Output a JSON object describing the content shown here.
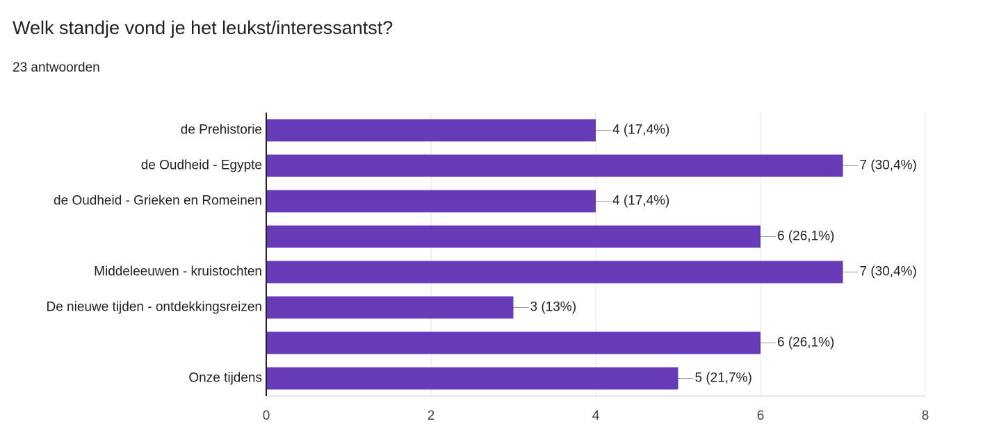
{
  "chart_data": {
    "type": "bar",
    "orientation": "horizontal",
    "title": "Welk standje vond je het leukst/interessantst?",
    "subtitle": "23 antwoorden",
    "categories": [
      "de Prehistorie",
      "de Oudheid - Egypte",
      "de Oudheid - Grieken en Romeinen",
      null,
      "Middeleeuwen - kruistochten",
      "De nieuwe tijden - ontdekkingsreizen",
      null,
      "Onze tijdens"
    ],
    "values": [
      4,
      7,
      4,
      6,
      7,
      3,
      6,
      5
    ],
    "value_labels": [
      "4 (17,4%)",
      "7 (30,4%)",
      "4 (17,4%)",
      "6 (26,1%)",
      "7 (30,4%)",
      "3 (13%)",
      "6 (26,1%)",
      "5 (21,7%)"
    ],
    "color": "#673ab7",
    "xlim": [
      0,
      8
    ],
    "xticks": [
      0,
      2,
      4,
      6,
      8
    ],
    "grid": true
  }
}
